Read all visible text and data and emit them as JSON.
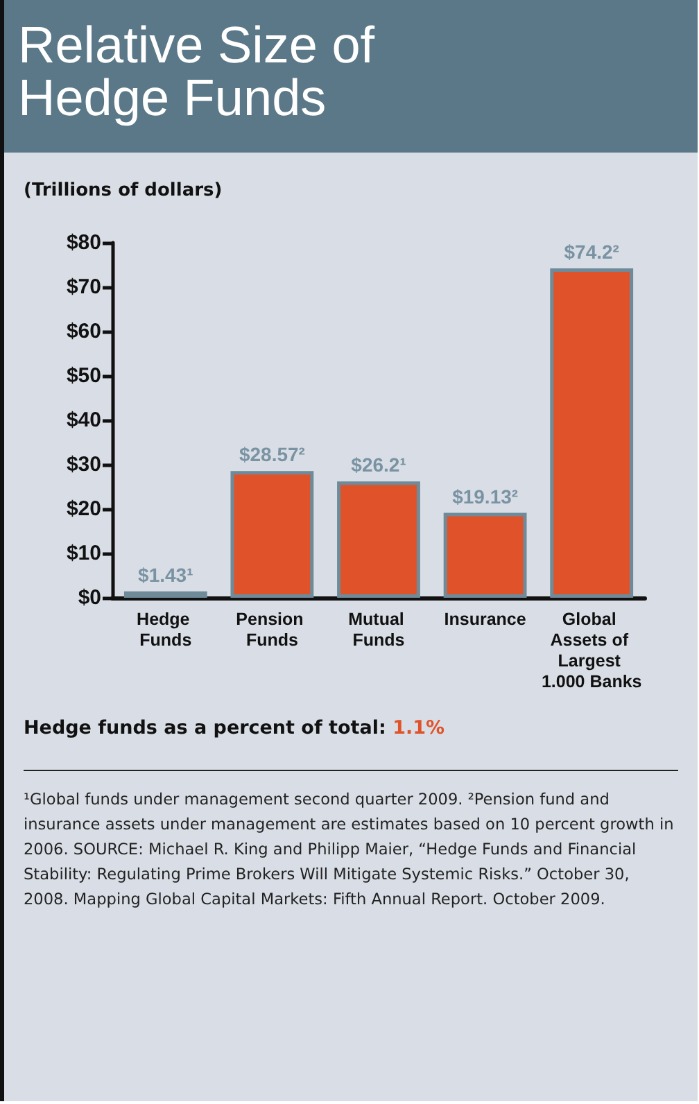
{
  "chart_data": {
    "type": "bar",
    "title": "Relative Size of Hedge Funds",
    "subtitle": "(Trillions of dollars)",
    "categories": [
      "Hedge Funds",
      "Pension Funds",
      "Mutual Funds",
      "Insurance",
      "Global Assets of Largest 1.000 Banks"
    ],
    "values": [
      1.43,
      28.57,
      26.2,
      19.13,
      74.2
    ],
    "value_labels": [
      "$1.43¹",
      "$28.57²",
      "$26.2¹",
      "$19.13²",
      "$74.2²"
    ],
    "color": "#e0532a",
    "ylim": [
      0,
      80
    ],
    "yticks": [
      {
        "value": 0,
        "label": "$0"
      },
      {
        "value": 10,
        "label": "$10"
      },
      {
        "value": 20,
        "label": "$20"
      },
      {
        "value": 30,
        "label": "$30"
      },
      {
        "value": 40,
        "label": "$40"
      },
      {
        "value": 50,
        "label": "$50"
      },
      {
        "value": 60,
        "label": "$60"
      },
      {
        "value": 70,
        "label": "$70"
      },
      {
        "value": 80,
        "label": "$80"
      }
    ],
    "annotations": [
      "Hedge funds as a percent of total: 1.1%",
      "¹Global funds under management second quarter 2009. ²Pension fund and insurance assets under management are estimates based on 10 percent growth in 2006.  SOURCE: Michael R. King and Philipp Maier, “Hedge Funds and Financial Stability: Regulating Prime Brokers Will Mitigate Systemic Risks.” October 30, 2008. Mapping Global Capital Markets: Fifth Annual Report. October 2009."
    ]
  }
}
